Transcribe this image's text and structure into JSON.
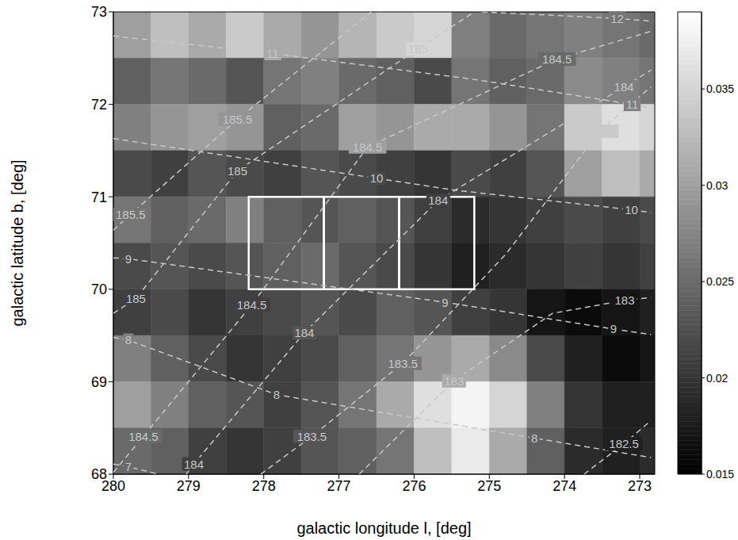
{
  "chart_data": {
    "type": "heatmap",
    "x_label": "galactic longitude l, [deg]",
    "y_label": "galactic latitude b, [deg]",
    "xlim": [
      280,
      272.8
    ],
    "xticks": [
      280,
      279,
      278,
      277,
      276,
      275,
      274,
      273
    ],
    "ylim": [
      68,
      73
    ],
    "yticks": [
      68,
      69,
      70,
      71,
      72,
      73
    ],
    "line_style": "dashed",
    "heatmap": {
      "x_edges": [
        280,
        279.5,
        279,
        278.5,
        278,
        277.5,
        277,
        276.5,
        276,
        275.5,
        275,
        274.5,
        274,
        273.5,
        273,
        272.8
      ],
      "y_edges": [
        73,
        72.5,
        72,
        71.5,
        71,
        70.5,
        70,
        69.5,
        69,
        68.5,
        68
      ],
      "values": [
        [
          0.03,
          0.033,
          0.031,
          0.034,
          0.031,
          0.029,
          0.032,
          0.034,
          0.035,
          0.027,
          0.025,
          0.026,
          0.027,
          0.026,
          0.025
        ],
        [
          0.024,
          0.026,
          0.025,
          0.023,
          0.026,
          0.027,
          0.025,
          0.024,
          0.022,
          0.026,
          0.024,
          0.025,
          0.028,
          0.027,
          0.026
        ],
        [
          0.027,
          0.029,
          0.03,
          0.029,
          0.024,
          0.025,
          0.03,
          0.029,
          0.031,
          0.031,
          0.029,
          0.026,
          0.034,
          0.036,
          0.035
        ],
        [
          0.022,
          0.021,
          0.023,
          0.022,
          0.021,
          0.023,
          0.022,
          0.021,
          0.02,
          0.022,
          0.021,
          0.023,
          0.03,
          0.033,
          0.031
        ],
        [
          0.026,
          0.024,
          0.025,
          0.027,
          0.024,
          0.023,
          0.024,
          0.023,
          0.021,
          0.019,
          0.02,
          0.021,
          0.022,
          0.021,
          0.022
        ],
        [
          0.022,
          0.023,
          0.022,
          0.023,
          0.024,
          0.025,
          0.023,
          0.022,
          0.02,
          0.018,
          0.019,
          0.02,
          0.021,
          0.02,
          0.021
        ],
        [
          0.021,
          0.022,
          0.02,
          0.021,
          0.022,
          0.023,
          0.022,
          0.024,
          0.023,
          0.021,
          0.02,
          0.017,
          0.016,
          0.017,
          0.018
        ],
        [
          0.027,
          0.024,
          0.022,
          0.02,
          0.021,
          0.022,
          0.024,
          0.026,
          0.029,
          0.031,
          0.028,
          0.022,
          0.018,
          0.016,
          0.017
        ],
        [
          0.03,
          0.027,
          0.024,
          0.023,
          0.021,
          0.023,
          0.026,
          0.031,
          0.036,
          0.038,
          0.035,
          0.027,
          0.02,
          0.018,
          0.018
        ],
        [
          0.025,
          0.024,
          0.021,
          0.02,
          0.021,
          0.023,
          0.024,
          0.026,
          0.033,
          0.037,
          0.031,
          0.024,
          0.019,
          0.018,
          0.019
        ]
      ]
    },
    "colorbar": {
      "range": [
        0.015,
        0.039
      ],
      "ticks": [
        0.015,
        0.02,
        0.025,
        0.03,
        0.035
      ]
    },
    "contours": [
      {
        "level": 182.5,
        "points": [
          [
            273.74,
            68.0
          ],
          [
            273.21,
            68.33
          ],
          [
            272.85,
            68.58
          ]
        ],
        "labels_at": [
          [
            273.21,
            68.33
          ]
        ]
      },
      {
        "level": 183,
        "points": [
          [
            276.73,
            68.0
          ],
          [
            275.47,
            69.01
          ],
          [
            274.16,
            69.74
          ],
          [
            273.2,
            69.88
          ],
          [
            272.85,
            69.91
          ]
        ],
        "labels_at": [
          [
            275.47,
            69.01
          ],
          [
            273.2,
            69.88
          ]
        ]
      },
      {
        "level": 183.5,
        "points": [
          [
            278.04,
            68.0
          ],
          [
            277.36,
            68.41
          ],
          [
            276.15,
            69.2
          ],
          [
            274.78,
            70.38
          ],
          [
            273.53,
            71.71
          ],
          [
            272.85,
            72.19
          ]
        ],
        "labels_at": [
          [
            277.36,
            68.41
          ],
          [
            276.15,
            69.2
          ],
          [
            273.53,
            71.71
          ]
        ]
      },
      {
        "level": 184,
        "points": [
          [
            279.03,
            68.0
          ],
          [
            278.93,
            68.11
          ],
          [
            277.46,
            69.53
          ],
          [
            275.68,
            70.96
          ],
          [
            273.21,
            72.19
          ],
          [
            272.85,
            72.37
          ]
        ],
        "labels_at": [
          [
            278.93,
            68.11
          ],
          [
            277.46,
            69.53
          ],
          [
            275.68,
            70.96
          ],
          [
            273.21,
            72.19
          ]
        ]
      },
      {
        "level": 184.5,
        "points": [
          [
            280,
            68.02
          ],
          [
            279.6,
            68.41
          ],
          [
            278.16,
            69.83
          ],
          [
            276.62,
            71.54
          ],
          [
            274.1,
            72.49
          ],
          [
            272.85,
            72.79
          ]
        ],
        "labels_at": [
          [
            279.6,
            68.41
          ],
          [
            278.16,
            69.83
          ],
          [
            276.62,
            71.54
          ],
          [
            274.1,
            72.49
          ]
        ]
      },
      {
        "level": 185,
        "points": [
          [
            280,
            69.74
          ],
          [
            279.7,
            69.9
          ],
          [
            278.35,
            71.28
          ],
          [
            275.95,
            72.6
          ],
          [
            275.2,
            73.0
          ]
        ],
        "labels_at": [
          [
            279.7,
            69.9
          ],
          [
            278.35,
            71.28
          ],
          [
            275.95,
            72.6
          ]
        ]
      },
      {
        "level": 185.5,
        "points": [
          [
            280,
            70.64
          ],
          [
            279.77,
            70.81
          ],
          [
            278.35,
            71.84
          ],
          [
            277.09,
            72.66
          ],
          [
            276.57,
            73.0
          ]
        ],
        "labels_at": [
          [
            279.77,
            70.81
          ],
          [
            278.35,
            71.84
          ]
        ]
      },
      {
        "level": 7,
        "points": [
          [
            280,
            68.11
          ],
          [
            279.8,
            68.08
          ],
          [
            279.4,
            68.0
          ]
        ],
        "labels_at": [
          [
            279.8,
            68.08
          ]
        ]
      },
      {
        "level": 8,
        "points": [
          [
            280,
            69.48
          ],
          [
            279.8,
            69.45
          ],
          [
            277.83,
            68.86
          ],
          [
            274.4,
            68.39
          ],
          [
            273,
            68.2
          ],
          [
            272.85,
            68.18
          ]
        ],
        "labels_at": [
          [
            279.8,
            69.45
          ],
          [
            277.83,
            68.86
          ],
          [
            274.4,
            68.39
          ]
        ]
      },
      {
        "level": 9,
        "points": [
          [
            280,
            70.34
          ],
          [
            279.8,
            70.33
          ],
          [
            275.59,
            69.86
          ],
          [
            273.35,
            69.57
          ],
          [
            272.85,
            69.51
          ]
        ],
        "labels_at": [
          [
            279.8,
            70.33
          ],
          [
            275.59,
            69.86
          ],
          [
            273.35,
            69.57
          ]
        ]
      },
      {
        "level": 10,
        "points": [
          [
            280,
            71.63
          ],
          [
            276.5,
            71.2
          ],
          [
            275.44,
            71.07
          ],
          [
            273.11,
            70.86
          ],
          [
            272.85,
            70.83
          ]
        ],
        "labels_at": [
          [
            276.5,
            71.2
          ],
          [
            273.11,
            70.86
          ]
        ]
      },
      {
        "level": 11,
        "points": [
          [
            280,
            72.74
          ],
          [
            277.88,
            72.55
          ],
          [
            275.2,
            72.27
          ],
          [
            273.1,
            72.0
          ],
          [
            272.85,
            71.96
          ]
        ],
        "labels_at": [
          [
            277.88,
            72.55
          ],
          [
            273.1,
            72.0
          ]
        ]
      },
      {
        "level": 12,
        "points": [
          [
            275.1,
            73.0
          ],
          [
            273.3,
            72.93
          ],
          [
            272.85,
            72.9
          ]
        ],
        "labels_at": [
          [
            273.3,
            72.93
          ]
        ]
      }
    ],
    "boxes": [
      {
        "l": [
          278.2,
          277.2
        ],
        "b": [
          70,
          71
        ]
      },
      {
        "l": [
          277.2,
          276.2
        ],
        "b": [
          70,
          71
        ]
      },
      {
        "l": [
          276.2,
          275.2
        ],
        "b": [
          70,
          71
        ]
      }
    ]
  }
}
